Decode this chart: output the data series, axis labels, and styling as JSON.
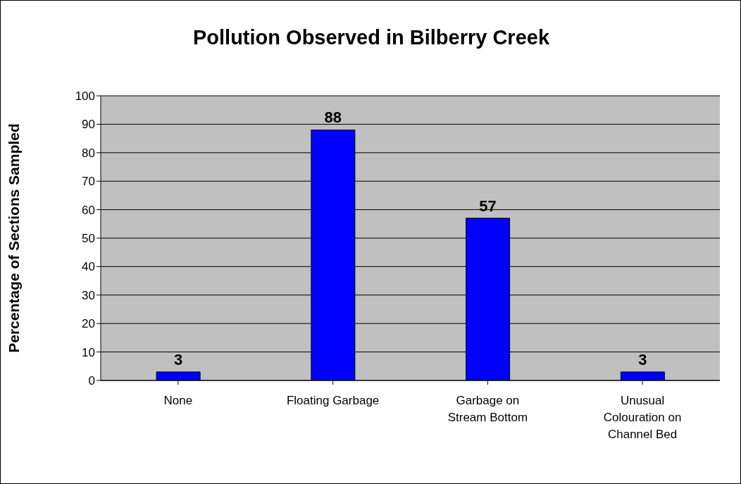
{
  "chart_data": {
    "type": "bar",
    "title": "Pollution Observed in Bilberry Creek",
    "ylabel": "Percentage of Sections Sampled",
    "categories": [
      "None",
      "Floating Garbage",
      "Garbage on Stream Bottom",
      "Unusual Colouration on Channel Bed"
    ],
    "values": [
      3,
      88,
      57,
      3
    ],
    "color": "#0000ff",
    "ylim": [
      0,
      100
    ],
    "yticks": [
      0,
      10,
      20,
      30,
      40,
      50,
      60,
      70,
      80,
      90,
      100
    ],
    "grid": "y",
    "data_labels": true
  }
}
